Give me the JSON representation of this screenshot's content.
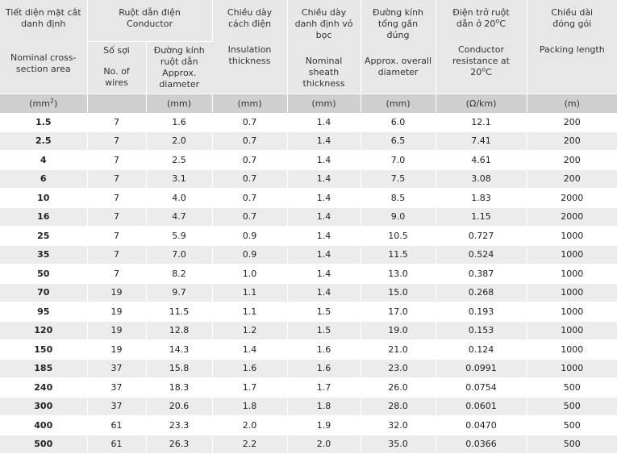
{
  "headers": {
    "area_vi": "Tiết diện mặt cắt danh định",
    "area_en": "Nominal cross-section area",
    "conductor_vi": "Ruột dẫn điện",
    "conductor_en": "Conductor",
    "wires_vi": "Số sợi",
    "wires_en": "No. of wires",
    "cond_dia_vi": "Đường kính ruột dẫn",
    "cond_dia_en": "Approx. diameter",
    "insul_vi": "Chiều dày cách điện",
    "insul_en": "Insulation thickness",
    "sheath_vi": "Chiều dày danh định vỏ bọc",
    "sheath_en": "Nominal sheath thickness",
    "overall_vi": "Đường kính tổng gần đúng",
    "overall_en": "Approx. overall diameter",
    "resist_vi_prefix": "Điện trở ruột dẫn ở 20",
    "resist_vi_sup": "o",
    "resist_vi_suffix": "C",
    "resist_en_prefix": "Conductor resistance at 20",
    "resist_en_sup": "o",
    "resist_en_suffix": "C",
    "pack_vi": "Chiều dài đóng gói",
    "pack_en": "Packing length"
  },
  "units": {
    "area_prefix": "(mm",
    "area_sup": "2",
    "area_suffix": ")",
    "wires": "",
    "cond_dia": "(mm)",
    "insul": "(mm)",
    "sheath": "(mm)",
    "overall": "(mm)",
    "resist": "(Ω/km)",
    "pack": "(m)"
  },
  "rows": [
    {
      "area": "1.5",
      "wires": "7",
      "cond_dia": "1.6",
      "insul": "0.7",
      "sheath": "1.4",
      "overall": "6.0",
      "resist": "12.1",
      "pack": "200"
    },
    {
      "area": "2.5",
      "wires": "7",
      "cond_dia": "2.0",
      "insul": "0.7",
      "sheath": "1.4",
      "overall": "6.5",
      "resist": "7.41",
      "pack": "200"
    },
    {
      "area": "4",
      "wires": "7",
      "cond_dia": "2.5",
      "insul": "0.7",
      "sheath": "1.4",
      "overall": "7.0",
      "resist": "4.61",
      "pack": "200"
    },
    {
      "area": "6",
      "wires": "7",
      "cond_dia": "3.1",
      "insul": "0.7",
      "sheath": "1.4",
      "overall": "7.5",
      "resist": "3.08",
      "pack": "200"
    },
    {
      "area": "10",
      "wires": "7",
      "cond_dia": "4.0",
      "insul": "0.7",
      "sheath": "1.4",
      "overall": "8.5",
      "resist": "1.83",
      "pack": "2000"
    },
    {
      "area": "16",
      "wires": "7",
      "cond_dia": "4.7",
      "insul": "0.7",
      "sheath": "1.4",
      "overall": "9.0",
      "resist": "1.15",
      "pack": "2000"
    },
    {
      "area": "25",
      "wires": "7",
      "cond_dia": "5.9",
      "insul": "0.9",
      "sheath": "1.4",
      "overall": "10.5",
      "resist": "0.727",
      "pack": "1000"
    },
    {
      "area": "35",
      "wires": "7",
      "cond_dia": "7.0",
      "insul": "0.9",
      "sheath": "1.4",
      "overall": "11.5",
      "resist": "0.524",
      "pack": "1000"
    },
    {
      "area": "50",
      "wires": "7",
      "cond_dia": "8.2",
      "insul": "1.0",
      "sheath": "1.4",
      "overall": "13.0",
      "resist": "0.387",
      "pack": "1000"
    },
    {
      "area": "70",
      "wires": "19",
      "cond_dia": "9.7",
      "insul": "1.1",
      "sheath": "1.4",
      "overall": "15.0",
      "resist": "0.268",
      "pack": "1000"
    },
    {
      "area": "95",
      "wires": "19",
      "cond_dia": "11.5",
      "insul": "1.1",
      "sheath": "1.5",
      "overall": "17.0",
      "resist": "0.193",
      "pack": "1000"
    },
    {
      "area": "120",
      "wires": "19",
      "cond_dia": "12.8",
      "insul": "1.2",
      "sheath": "1.5",
      "overall": "19.0",
      "resist": "0.153",
      "pack": "1000"
    },
    {
      "area": "150",
      "wires": "19",
      "cond_dia": "14.3",
      "insul": "1.4",
      "sheath": "1.6",
      "overall": "21.0",
      "resist": "0.124",
      "pack": "1000"
    },
    {
      "area": "185",
      "wires": "37",
      "cond_dia": "15.8",
      "insul": "1.6",
      "sheath": "1.6",
      "overall": "23.0",
      "resist": "0.0991",
      "pack": "1000"
    },
    {
      "area": "240",
      "wires": "37",
      "cond_dia": "18.3",
      "insul": "1.7",
      "sheath": "1.7",
      "overall": "26.0",
      "resist": "0.0754",
      "pack": "500"
    },
    {
      "area": "300",
      "wires": "37",
      "cond_dia": "20.6",
      "insul": "1.8",
      "sheath": "1.8",
      "overall": "28.0",
      "resist": "0.0601",
      "pack": "500"
    },
    {
      "area": "400",
      "wires": "61",
      "cond_dia": "23.3",
      "insul": "2.0",
      "sheath": "1.9",
      "overall": "32.0",
      "resist": "0.0470",
      "pack": "500"
    },
    {
      "area": "500",
      "wires": "61",
      "cond_dia": "26.3",
      "insul": "2.2",
      "sheath": "2.0",
      "overall": "35.0",
      "resist": "0.0366",
      "pack": "500"
    }
  ]
}
